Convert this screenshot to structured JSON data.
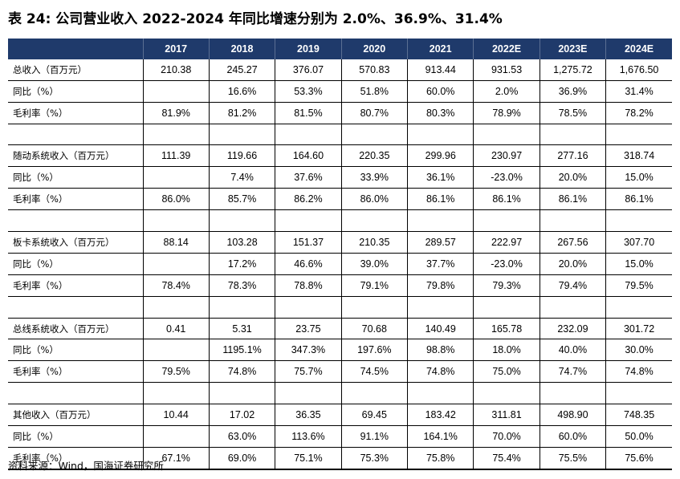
{
  "title": "表 24:  公司营业收入 2022-2024 年同比增速分别为 2.0%、36.9%、31.4%",
  "table": {
    "headers": [
      "",
      "2017",
      "2018",
      "2019",
      "2020",
      "2021",
      "2022E",
      "2023E",
      "2024E"
    ],
    "rows": [
      [
        "总收入（百万元）",
        "210.38",
        "245.27",
        "376.07",
        "570.83",
        "913.44",
        "931.53",
        "1,275.72",
        "1,676.50"
      ],
      [
        "同比（%）",
        "",
        "16.6%",
        "53.3%",
        "51.8%",
        "60.0%",
        "2.0%",
        "36.9%",
        "31.4%"
      ],
      [
        "毛利率（%）",
        "81.9%",
        "81.2%",
        "81.5%",
        "80.7%",
        "80.3%",
        "78.9%",
        "78.5%",
        "78.2%"
      ],
      [
        "",
        "",
        "",
        "",
        "",
        "",
        "",
        "",
        ""
      ],
      [
        "随动系统收入（百万元）",
        "111.39",
        "119.66",
        "164.60",
        "220.35",
        "299.96",
        "230.97",
        "277.16",
        "318.74"
      ],
      [
        "同比（%）",
        "",
        "7.4%",
        "37.6%",
        "33.9%",
        "36.1%",
        "-23.0%",
        "20.0%",
        "15.0%"
      ],
      [
        "毛利率（%）",
        "86.0%",
        "85.7%",
        "86.2%",
        "86.0%",
        "86.1%",
        "86.1%",
        "86.1%",
        "86.1%"
      ],
      [
        "",
        "",
        "",
        "",
        "",
        "",
        "",
        "",
        ""
      ],
      [
        "板卡系统收入（百万元）",
        "88.14",
        "103.28",
        "151.37",
        "210.35",
        "289.57",
        "222.97",
        "267.56",
        "307.70"
      ],
      [
        "同比（%）",
        "",
        "17.2%",
        "46.6%",
        "39.0%",
        "37.7%",
        "-23.0%",
        "20.0%",
        "15.0%"
      ],
      [
        "毛利率（%）",
        "78.4%",
        "78.3%",
        "78.8%",
        "79.1%",
        "79.8%",
        "79.3%",
        "79.4%",
        "79.5%"
      ],
      [
        "",
        "",
        "",
        "",
        "",
        "",
        "",
        "",
        ""
      ],
      [
        "总线系统收入（百万元）",
        "0.41",
        "5.31",
        "23.75",
        "70.68",
        "140.49",
        "165.78",
        "232.09",
        "301.72"
      ],
      [
        "同比（%）",
        "",
        "1195.1%",
        "347.3%",
        "197.6%",
        "98.8%",
        "18.0%",
        "40.0%",
        "30.0%"
      ],
      [
        "毛利率（%）",
        "79.5%",
        "74.8%",
        "75.7%",
        "74.5%",
        "74.8%",
        "75.0%",
        "74.7%",
        "74.8%"
      ],
      [
        "",
        "",
        "",
        "",
        "",
        "",
        "",
        "",
        ""
      ],
      [
        "其他收入（百万元）",
        "10.44",
        "17.02",
        "36.35",
        "69.45",
        "183.42",
        "311.81",
        "498.90",
        "748.35"
      ],
      [
        "同比（%）",
        "",
        "63.0%",
        "113.6%",
        "91.1%",
        "164.1%",
        "70.0%",
        "60.0%",
        "50.0%"
      ],
      [
        "毛利率（%）",
        "67.1%",
        "69.0%",
        "75.1%",
        "75.3%",
        "75.8%",
        "75.4%",
        "75.5%",
        "75.6%"
      ]
    ]
  },
  "source": "资料来源：Wind，国海证券研究所"
}
